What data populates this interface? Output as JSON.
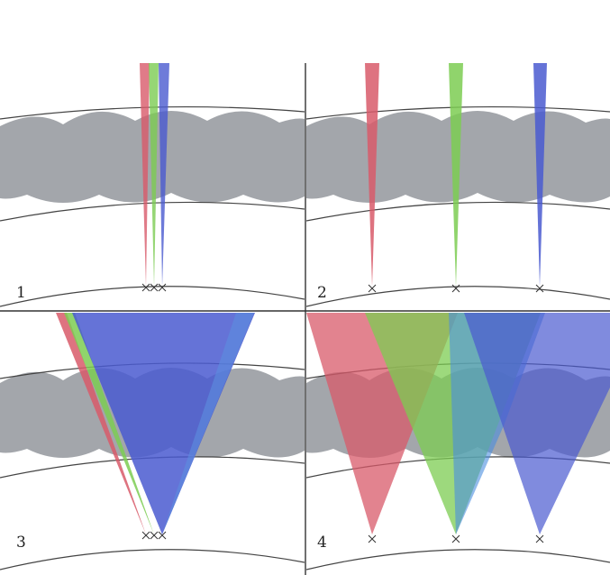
{
  "figure": {
    "panels": [
      {
        "id": "1",
        "label": "1",
        "beam_spread": "narrow",
        "focus_arrangement": "clustered"
      },
      {
        "id": "2",
        "label": "2",
        "beam_spread": "narrow",
        "focus_arrangement": "separated"
      },
      {
        "id": "3",
        "label": "3",
        "beam_spread": "wide",
        "focus_arrangement": "clustered"
      },
      {
        "id": "4",
        "label": "4",
        "beam_spread": "wide",
        "focus_arrangement": "separated"
      }
    ],
    "beams": [
      {
        "name": "red",
        "color": "#d85a6a"
      },
      {
        "name": "green",
        "color": "#7ccc52"
      },
      {
        "name": "blue",
        "color": "#4a5ad0"
      }
    ],
    "layer_color": "#a3a6ab",
    "line_color": "#444444",
    "background": "#ffffff"
  }
}
